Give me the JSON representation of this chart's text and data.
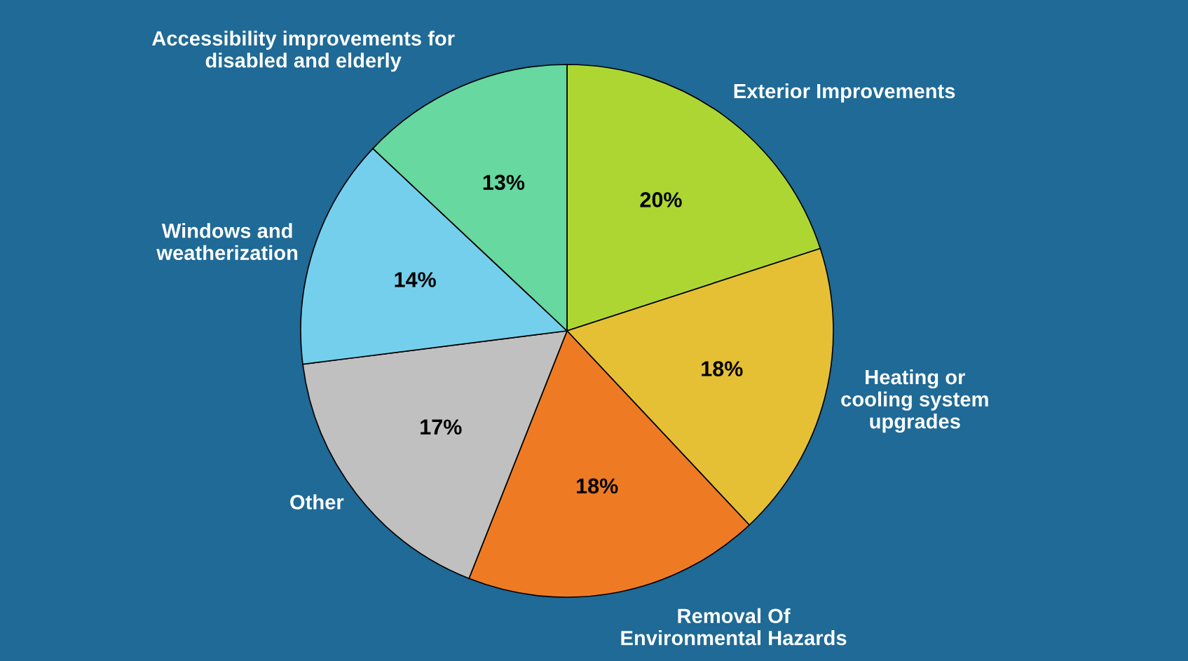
{
  "chart_data": {
    "type": "pie",
    "categories": [
      "Exterior Improvements",
      "Heating or\ncooling system\nupgrades",
      "Removal Of\nEnvironmental Hazards",
      "Other",
      "Windows and\nweatherization",
      "Accessibility improvements for\ndisabled and elderly"
    ],
    "values": [
      20,
      18,
      18,
      17,
      14,
      13
    ],
    "colors": [
      "#add633",
      "#e5c035",
      "#ee7b24",
      "#c0c0c0",
      "#74cfec",
      "#66d8a0"
    ],
    "value_labels": [
      "20%",
      "18%",
      "18%",
      "17%",
      "14%",
      "13%"
    ]
  }
}
